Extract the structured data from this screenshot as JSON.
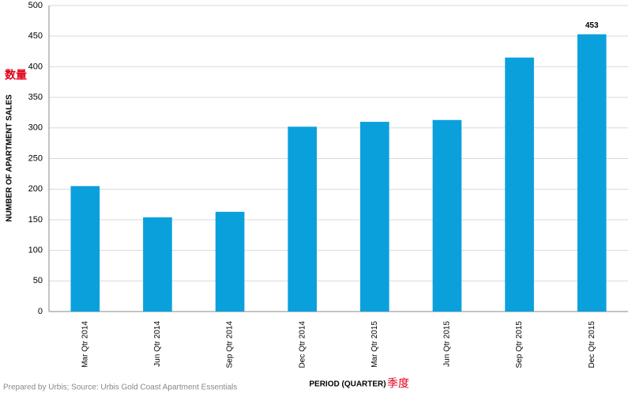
{
  "chart_data": {
    "type": "bar",
    "y_label": "NUMBER OF APARTMENT SALES",
    "y_annotation": "数量",
    "x_label": "PERIOD (QUARTER)",
    "x_annotation": "季度",
    "source": "Prepared by Urbis; Source: Urbis Gold Coast Apartment Essentials",
    "categories": [
      "Mar Qtr 2014",
      "Jun Qtr 2014",
      "Sep Qtr 2014",
      "Dec Qtr 2014",
      "Mar Qtr 2015",
      "Jun Qtr 2015",
      "Sep Qtr 2015",
      "Dec Qtr 2015"
    ],
    "values": [
      205,
      154,
      163,
      302,
      310,
      313,
      415,
      453
    ],
    "value_labels": [
      null,
      null,
      null,
      null,
      null,
      null,
      null,
      "453"
    ],
    "color": "#0aa0dc",
    "annotation_color": "#e0001b",
    "ylim": [
      0,
      500
    ],
    "yticks": [
      0,
      50,
      100,
      150,
      200,
      250,
      300,
      350,
      400,
      450,
      500
    ],
    "grid": true
  }
}
